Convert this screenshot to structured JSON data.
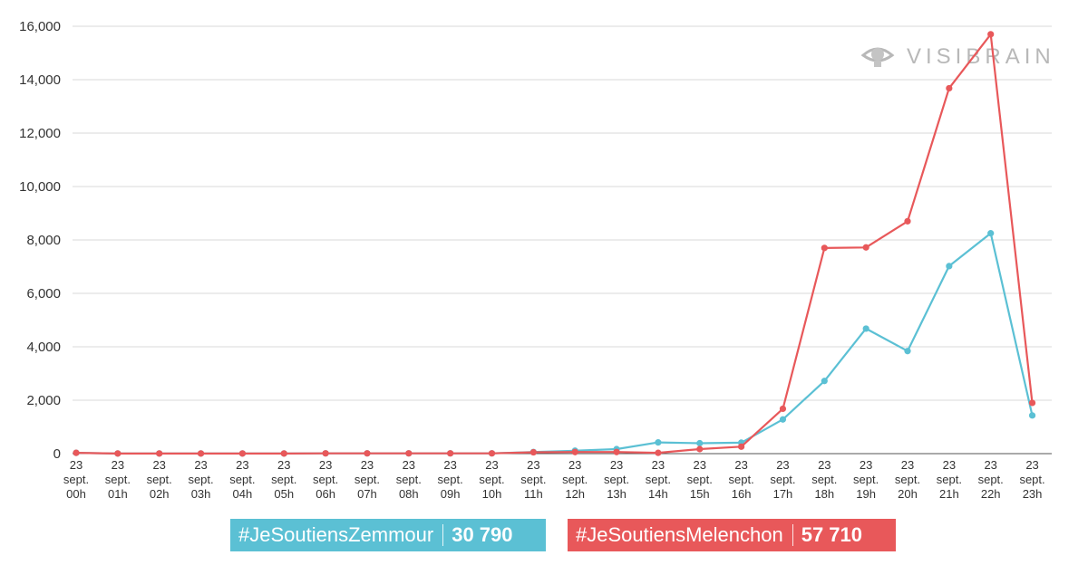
{
  "chart_data": {
    "type": "line",
    "categories": [
      [
        "23",
        "sept.",
        "00h"
      ],
      [
        "23",
        "sept.",
        "01h"
      ],
      [
        "23",
        "sept.",
        "02h"
      ],
      [
        "23",
        "sept.",
        "03h"
      ],
      [
        "23",
        "sept.",
        "04h"
      ],
      [
        "23",
        "sept.",
        "05h"
      ],
      [
        "23",
        "sept.",
        "06h"
      ],
      [
        "23",
        "sept.",
        "07h"
      ],
      [
        "23",
        "sept.",
        "08h"
      ],
      [
        "23",
        "sept.",
        "09h"
      ],
      [
        "23",
        "sept.",
        "10h"
      ],
      [
        "23",
        "sept.",
        "11h"
      ],
      [
        "23",
        "sept.",
        "12h"
      ],
      [
        "23",
        "sept.",
        "13h"
      ],
      [
        "23",
        "sept.",
        "14h"
      ],
      [
        "23",
        "sept.",
        "15h"
      ],
      [
        "23",
        "sept.",
        "16h"
      ],
      [
        "23",
        "sept.",
        "17h"
      ],
      [
        "23",
        "sept.",
        "18h"
      ],
      [
        "23",
        "sept.",
        "19h"
      ],
      [
        "23",
        "sept.",
        "20h"
      ],
      [
        "23",
        "sept.",
        "21h"
      ],
      [
        "23",
        "sept.",
        "22h"
      ],
      [
        "23",
        "sept.",
        "23h"
      ]
    ],
    "series": [
      {
        "name": "#JeSoutiensZemmour",
        "color": "#5bc0d4",
        "total": "30 790",
        "values": [
          30,
          5,
          5,
          5,
          5,
          5,
          10,
          10,
          10,
          10,
          10,
          60,
          110,
          170,
          420,
          390,
          410,
          1280,
          2720,
          4680,
          3840,
          7020,
          8250,
          1430
        ]
      },
      {
        "name": "#JeSoutiensMelenchon",
        "color": "#e8585a",
        "total": "57 710",
        "values": [
          30,
          5,
          5,
          5,
          5,
          5,
          10,
          10,
          10,
          10,
          10,
          50,
          60,
          60,
          30,
          170,
          260,
          1680,
          7700,
          7720,
          8700,
          13680,
          15700,
          1900
        ]
      }
    ],
    "y_ticks": [
      "0",
      "2,000",
      "4,000",
      "6,000",
      "8,000",
      "10,000",
      "12,000",
      "14,000",
      "16,000"
    ],
    "ylim": [
      0,
      16000
    ],
    "grid": true,
    "legend_position": "bottom-center"
  },
  "watermark": {
    "text": "VISIBRAIN",
    "icon": "eye-icon"
  }
}
